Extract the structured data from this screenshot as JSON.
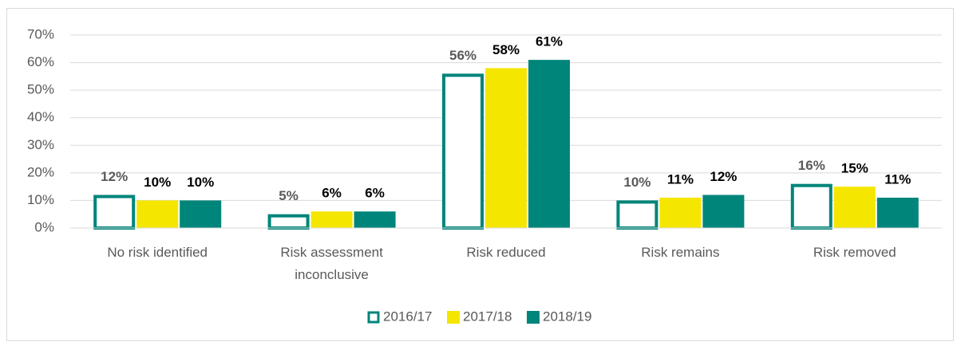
{
  "chart_data": {
    "type": "bar",
    "categories": [
      "No risk identified",
      "Risk assessment inconclusive",
      "Risk reduced",
      "Risk remains",
      "Risk removed"
    ],
    "series": [
      {
        "name": "2016/17",
        "color": "#00857a",
        "outline": true,
        "values": [
          12,
          5,
          56,
          10,
          16
        ],
        "value_labels": [
          "12%",
          "5%",
          "56%",
          "10%",
          "16%"
        ]
      },
      {
        "name": "2017/18",
        "color": "#f5e600",
        "values": [
          10,
          6,
          58,
          11,
          15
        ],
        "value_labels": [
          "10%",
          "6%",
          "58%",
          "11%",
          "15%"
        ]
      },
      {
        "name": "2018/19",
        "color": "#00857a",
        "values": [
          10,
          6,
          61,
          12,
          11
        ],
        "value_labels": [
          "10%",
          "6%",
          "61%",
          "12%",
          "11%"
        ]
      }
    ],
    "ylim": [
      0,
      70
    ],
    "yticks": [
      {
        "value": 0,
        "label": "0%"
      },
      {
        "value": 10,
        "label": "10%"
      },
      {
        "value": 20,
        "label": "20%"
      },
      {
        "value": 30,
        "label": "30%"
      },
      {
        "value": 40,
        "label": "40%"
      },
      {
        "value": 50,
        "label": "50%"
      },
      {
        "value": 60,
        "label": "60%"
      },
      {
        "value": 70,
        "label": "70%"
      }
    ],
    "grid": true,
    "legend": "bottom"
  }
}
